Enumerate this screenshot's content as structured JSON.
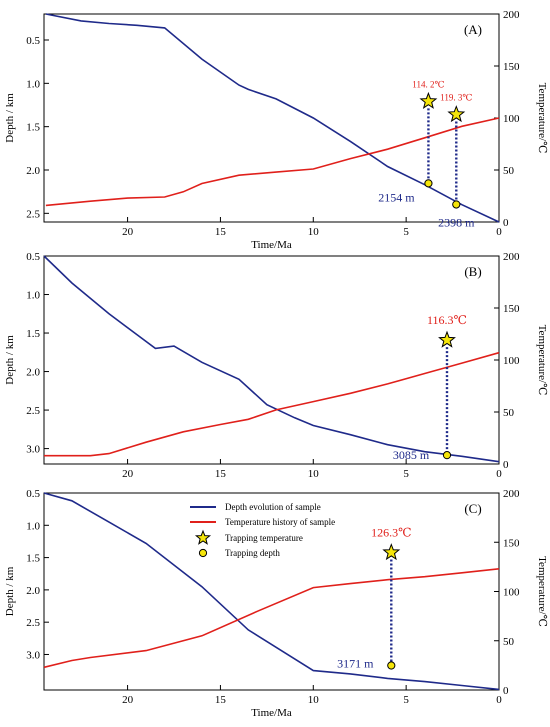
{
  "figure": {
    "legend": {
      "depth_label": "Depth evolution of sample",
      "temp_label": "Temperature history of sample",
      "star_label": "Trapping temperature",
      "dot_label": "Trapping depth"
    },
    "colors": {
      "depth": "#1f2a8a",
      "temperature": "#e0201b",
      "marker_fill": "#f5e50a",
      "depth_label_text": "#1f2a8a",
      "temp_label_text": "#e0201b"
    }
  },
  "chart_data": [
    {
      "type": "line",
      "panel_label": "(A)",
      "xlabel": "Time/Ma",
      "ylabel_left": "Depth / km",
      "ylabel_right": "Temperature/℃",
      "xlim": [
        24.5,
        0
      ],
      "xticks": [
        20,
        15,
        10,
        5,
        0
      ],
      "depth_lim": [
        0.2,
        2.6
      ],
      "depth_ticks": [
        0.5,
        1.0,
        1.5,
        2.0,
        2.5
      ],
      "depth_tick_labels": [
        "0.5",
        "1.0",
        "1.5",
        "2.0",
        "2.5"
      ],
      "temp_lim": [
        0,
        200
      ],
      "temp_ticks": [
        0,
        50,
        100,
        150,
        200
      ],
      "series": [
        {
          "key": "depth",
          "axis": "left",
          "x": [
            24.4,
            22.5,
            21.0,
            19.5,
            18.0,
            16.0,
            14.0,
            13.5,
            12.0,
            10.0,
            8.0,
            6.0,
            4.0,
            2.0,
            0.0
          ],
          "y": [
            0.2,
            0.28,
            0.31,
            0.33,
            0.36,
            0.72,
            1.02,
            1.07,
            1.18,
            1.4,
            1.67,
            1.96,
            2.17,
            2.4,
            2.6
          ]
        },
        {
          "key": "temperature",
          "axis": "right",
          "x": [
            24.4,
            22.0,
            20.0,
            18.0,
            17.0,
            16.0,
            14.0,
            12.0,
            10.0,
            8.0,
            6.0,
            4.0,
            2.0,
            0.0
          ],
          "y": [
            16,
            20,
            23,
            24,
            29,
            37,
            45,
            48,
            51,
            61,
            70,
            81,
            92,
            100
          ]
        }
      ],
      "samples": [
        {
          "time": 3.8,
          "depth_m": 2154,
          "temp": 114.2,
          "depth_label": "2154 m",
          "temp_label": "114. 2℃"
        },
        {
          "time": 2.3,
          "depth_m": 2398,
          "temp": 119.3,
          "depth_label": "2398 m",
          "temp_label": "119. 3℃"
        }
      ]
    },
    {
      "type": "line",
      "panel_label": "(B)",
      "xlabel": "",
      "ylabel_left": "Depth / km",
      "ylabel_right": "Temperature/℃",
      "xlim": [
        24.5,
        0
      ],
      "xticks": [
        20,
        15,
        10,
        5,
        0
      ],
      "depth_lim": [
        0.5,
        3.2
      ],
      "depth_ticks": [
        0.5,
        1.0,
        1.5,
        2.0,
        2.5,
        3.0
      ],
      "depth_tick_labels": [
        "0.5",
        "1.0",
        "1.5",
        "2.0",
        "2.5",
        "3.0"
      ],
      "temp_lim": [
        0,
        200
      ],
      "temp_ticks": [
        0,
        50,
        100,
        150,
        200
      ],
      "series": [
        {
          "key": "depth",
          "axis": "left",
          "x": [
            24.5,
            23.0,
            21.0,
            19.5,
            18.5,
            17.5,
            16.0,
            14.0,
            12.5,
            11.0,
            10.0,
            8.0,
            6.0,
            4.0,
            2.0,
            0.0
          ],
          "y": [
            0.5,
            0.85,
            1.25,
            1.52,
            1.7,
            1.67,
            1.88,
            2.1,
            2.43,
            2.6,
            2.7,
            2.82,
            2.95,
            3.04,
            3.1,
            3.17
          ]
        },
        {
          "key": "temperature",
          "axis": "right",
          "x": [
            24.5,
            22.0,
            21.0,
            19.0,
            17.0,
            15.0,
            13.5,
            12.0,
            10.0,
            8.0,
            6.0,
            4.0,
            2.0,
            0.0
          ],
          "y": [
            8,
            8,
            10,
            21,
            31,
            38,
            43,
            52,
            60,
            68,
            77,
            87,
            97,
            107
          ]
        }
      ],
      "samples": [
        {
          "time": 2.8,
          "depth_m": 3085,
          "temp": 116.3,
          "depth_label": "3085 m",
          "temp_label": "116.3℃"
        }
      ]
    },
    {
      "type": "line",
      "panel_label": "(C)",
      "xlabel": "Time/Ma",
      "ylabel_left": "Depth / km",
      "ylabel_right": "Temperature/℃",
      "xlim": [
        24.5,
        0
      ],
      "xticks": [
        20,
        15,
        10,
        5,
        0
      ],
      "depth_lim": [
        0.5,
        3.55
      ],
      "depth_ticks": [
        0.5,
        1.0,
        1.5,
        2.0,
        2.5,
        3.0
      ],
      "depth_tick_labels": [
        "0.5",
        "1.0",
        "1.5",
        "2.0",
        "2.5",
        "3.0"
      ],
      "temp_lim": [
        0,
        200
      ],
      "temp_ticks": [
        0,
        50,
        100,
        150,
        200
      ],
      "series": [
        {
          "key": "depth",
          "axis": "left",
          "x": [
            24.5,
            23.0,
            21.0,
            19.0,
            16.0,
            13.5,
            10.0,
            8.0,
            6.0,
            4.0,
            2.0,
            0.0
          ],
          "y": [
            0.5,
            0.62,
            0.95,
            1.28,
            1.95,
            2.62,
            3.25,
            3.3,
            3.37,
            3.42,
            3.48,
            3.54
          ]
        },
        {
          "key": "temperature",
          "axis": "right",
          "x": [
            24.5,
            23.0,
            22.0,
            19.0,
            16.0,
            13.0,
            10.0,
            8.0,
            6.0,
            4.0,
            2.0,
            0.0
          ],
          "y": [
            23,
            30,
            33,
            40,
            55,
            80,
            104,
            108,
            112,
            115,
            119,
            123
          ]
        }
      ],
      "samples": [
        {
          "time": 5.8,
          "depth_m": 3171,
          "temp": 126.3,
          "depth_label": "3171 m",
          "temp_label": "126.3℃"
        }
      ]
    }
  ]
}
